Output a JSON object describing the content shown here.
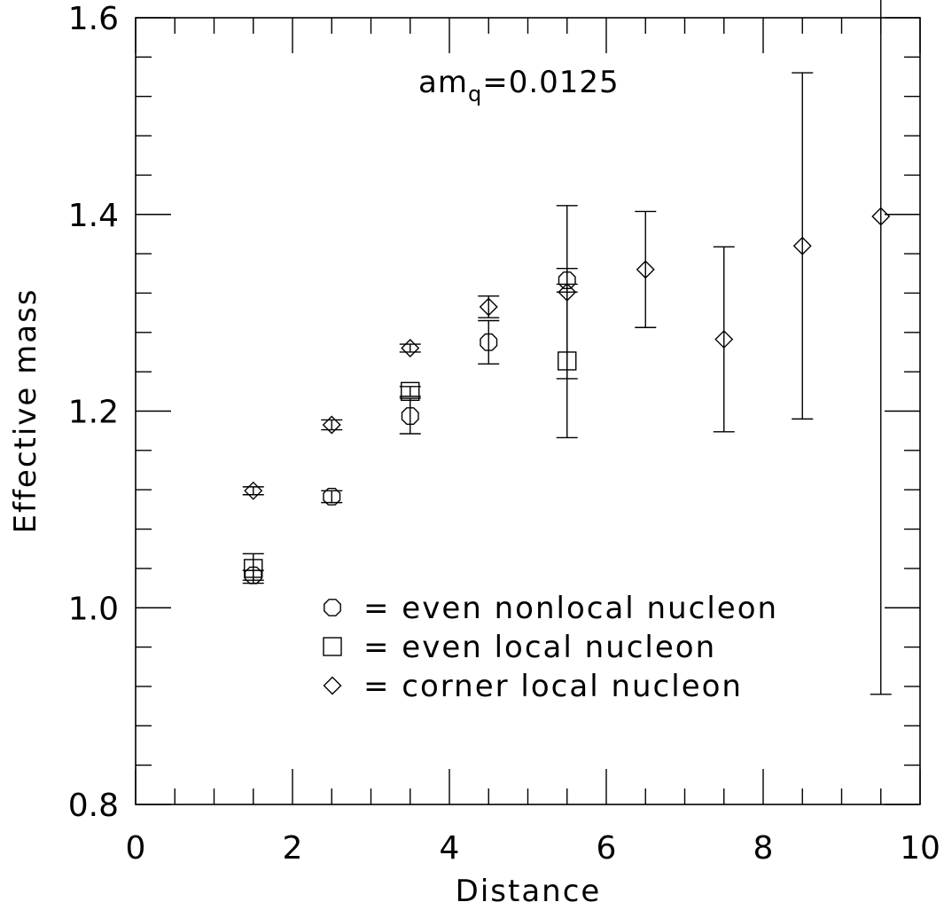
{
  "chart_data": {
    "type": "scatter",
    "xlabel": "Distance",
    "ylabel": "Effective mass",
    "xlim": [
      0,
      10
    ],
    "ylim": [
      0.8,
      1.6
    ],
    "x_ticks": [
      "0",
      "2",
      "4",
      "6",
      "8",
      "10"
    ],
    "y_ticks": [
      "0.8",
      "1.0",
      "1.2",
      "1.4",
      "1.6"
    ],
    "annotation": {
      "text": "am",
      "subscript": "q",
      "suffix": "=0.0125"
    },
    "series": [
      {
        "name": "= even nonlocal nucleon",
        "marker": "octagon",
        "points": [
          {
            "x": 1.5,
            "y": 1.033,
            "err": 0.005
          },
          {
            "x": 2.5,
            "y": 1.113,
            "err": 0.006
          },
          {
            "x": 3.5,
            "y": 1.195,
            "err": 0.018
          },
          {
            "x": 4.5,
            "y": 1.27,
            "err": 0.022
          },
          {
            "x": 5.5,
            "y": 1.333,
            "err": 0.012
          }
        ]
      },
      {
        "name": "= even local nucleon",
        "marker": "square",
        "points": [
          {
            "x": 1.5,
            "y": 1.04,
            "err": 0.015
          },
          {
            "x": 3.5,
            "y": 1.22,
            "err": 0.005
          },
          {
            "x": 5.5,
            "y": 1.251,
            "err": 0.078
          }
        ]
      },
      {
        "name": "= corner local nucleon",
        "marker": "diamond",
        "points": [
          {
            "x": 1.5,
            "y": 1.119,
            "err": 0.004
          },
          {
            "x": 2.5,
            "y": 1.186,
            "err": 0.005
          },
          {
            "x": 3.5,
            "y": 1.264,
            "err": 0.004
          },
          {
            "x": 4.5,
            "y": 1.306,
            "err": 0.011
          },
          {
            "x": 5.5,
            "y": 1.321,
            "err": 0.088
          },
          {
            "x": 6.5,
            "y": 1.344,
            "err": 0.059
          },
          {
            "x": 7.5,
            "y": 1.273,
            "err": 0.094
          },
          {
            "x": 8.5,
            "y": 1.368,
            "err": 0.176
          },
          {
            "x": 9.5,
            "y": 1.398,
            "err": 0.486
          }
        ]
      }
    ],
    "grid": false,
    "legend_position": "bottom-center"
  }
}
